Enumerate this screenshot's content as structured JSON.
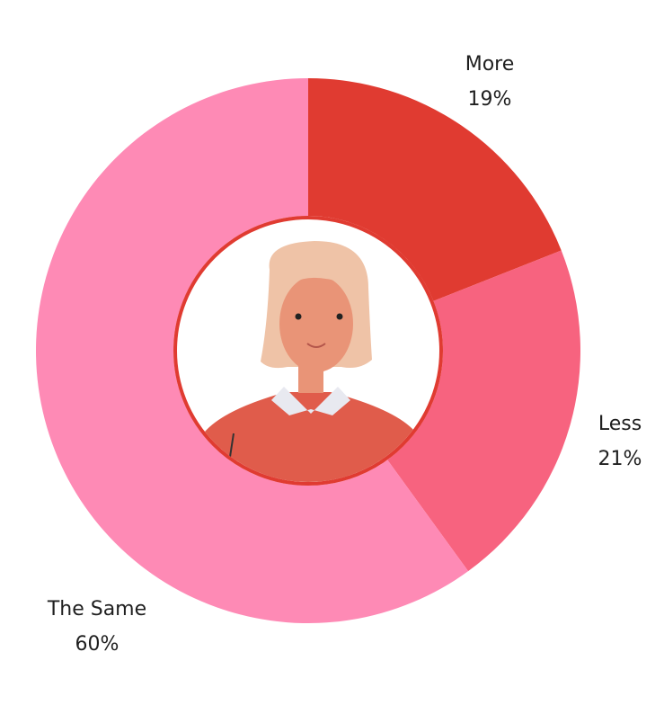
{
  "chart_data": {
    "type": "donut",
    "categories": [
      "More",
      "Less",
      "The Same"
    ],
    "values": [
      19,
      21,
      60
    ],
    "value_labels": [
      "19%",
      "21%",
      "60%"
    ],
    "colors": [
      "#e03b31",
      "#f7637f",
      "#fe8ab5"
    ]
  }
}
